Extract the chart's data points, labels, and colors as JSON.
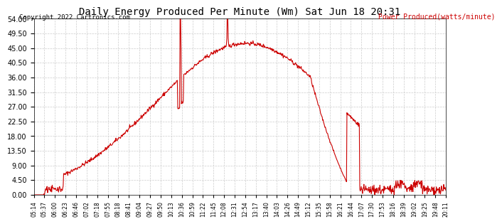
{
  "title": "Daily Energy Produced Per Minute (Wm) Sat Jun 18 20:31",
  "copyright": "Copyright 2022 Cartronics.com",
  "legend_label": "Power Produced(watts/minute)",
  "line_color": "#cc0000",
  "background_color": "#ffffff",
  "grid_color": "#cccccc",
  "ylim": [
    0,
    54.0
  ],
  "yticks": [
    0.0,
    4.5,
    9.0,
    13.5,
    18.0,
    22.5,
    27.0,
    31.5,
    36.0,
    40.5,
    45.0,
    49.5,
    54.0
  ],
  "xtick_labels": [
    "05:14",
    "05:37",
    "06:00",
    "06:23",
    "06:46",
    "07:02",
    "07:18",
    "07:55",
    "08:18",
    "08:41",
    "09:04",
    "09:27",
    "09:50",
    "10:13",
    "10:36",
    "10:59",
    "11:22",
    "11:45",
    "12:08",
    "12:31",
    "12:54",
    "13:17",
    "13:40",
    "14:03",
    "14:26",
    "14:49",
    "15:12",
    "15:35",
    "15:58",
    "16:21",
    "16:44",
    "17:07",
    "17:30",
    "17:53",
    "18:16",
    "18:39",
    "19:02",
    "19:25",
    "19:48",
    "20:11"
  ]
}
